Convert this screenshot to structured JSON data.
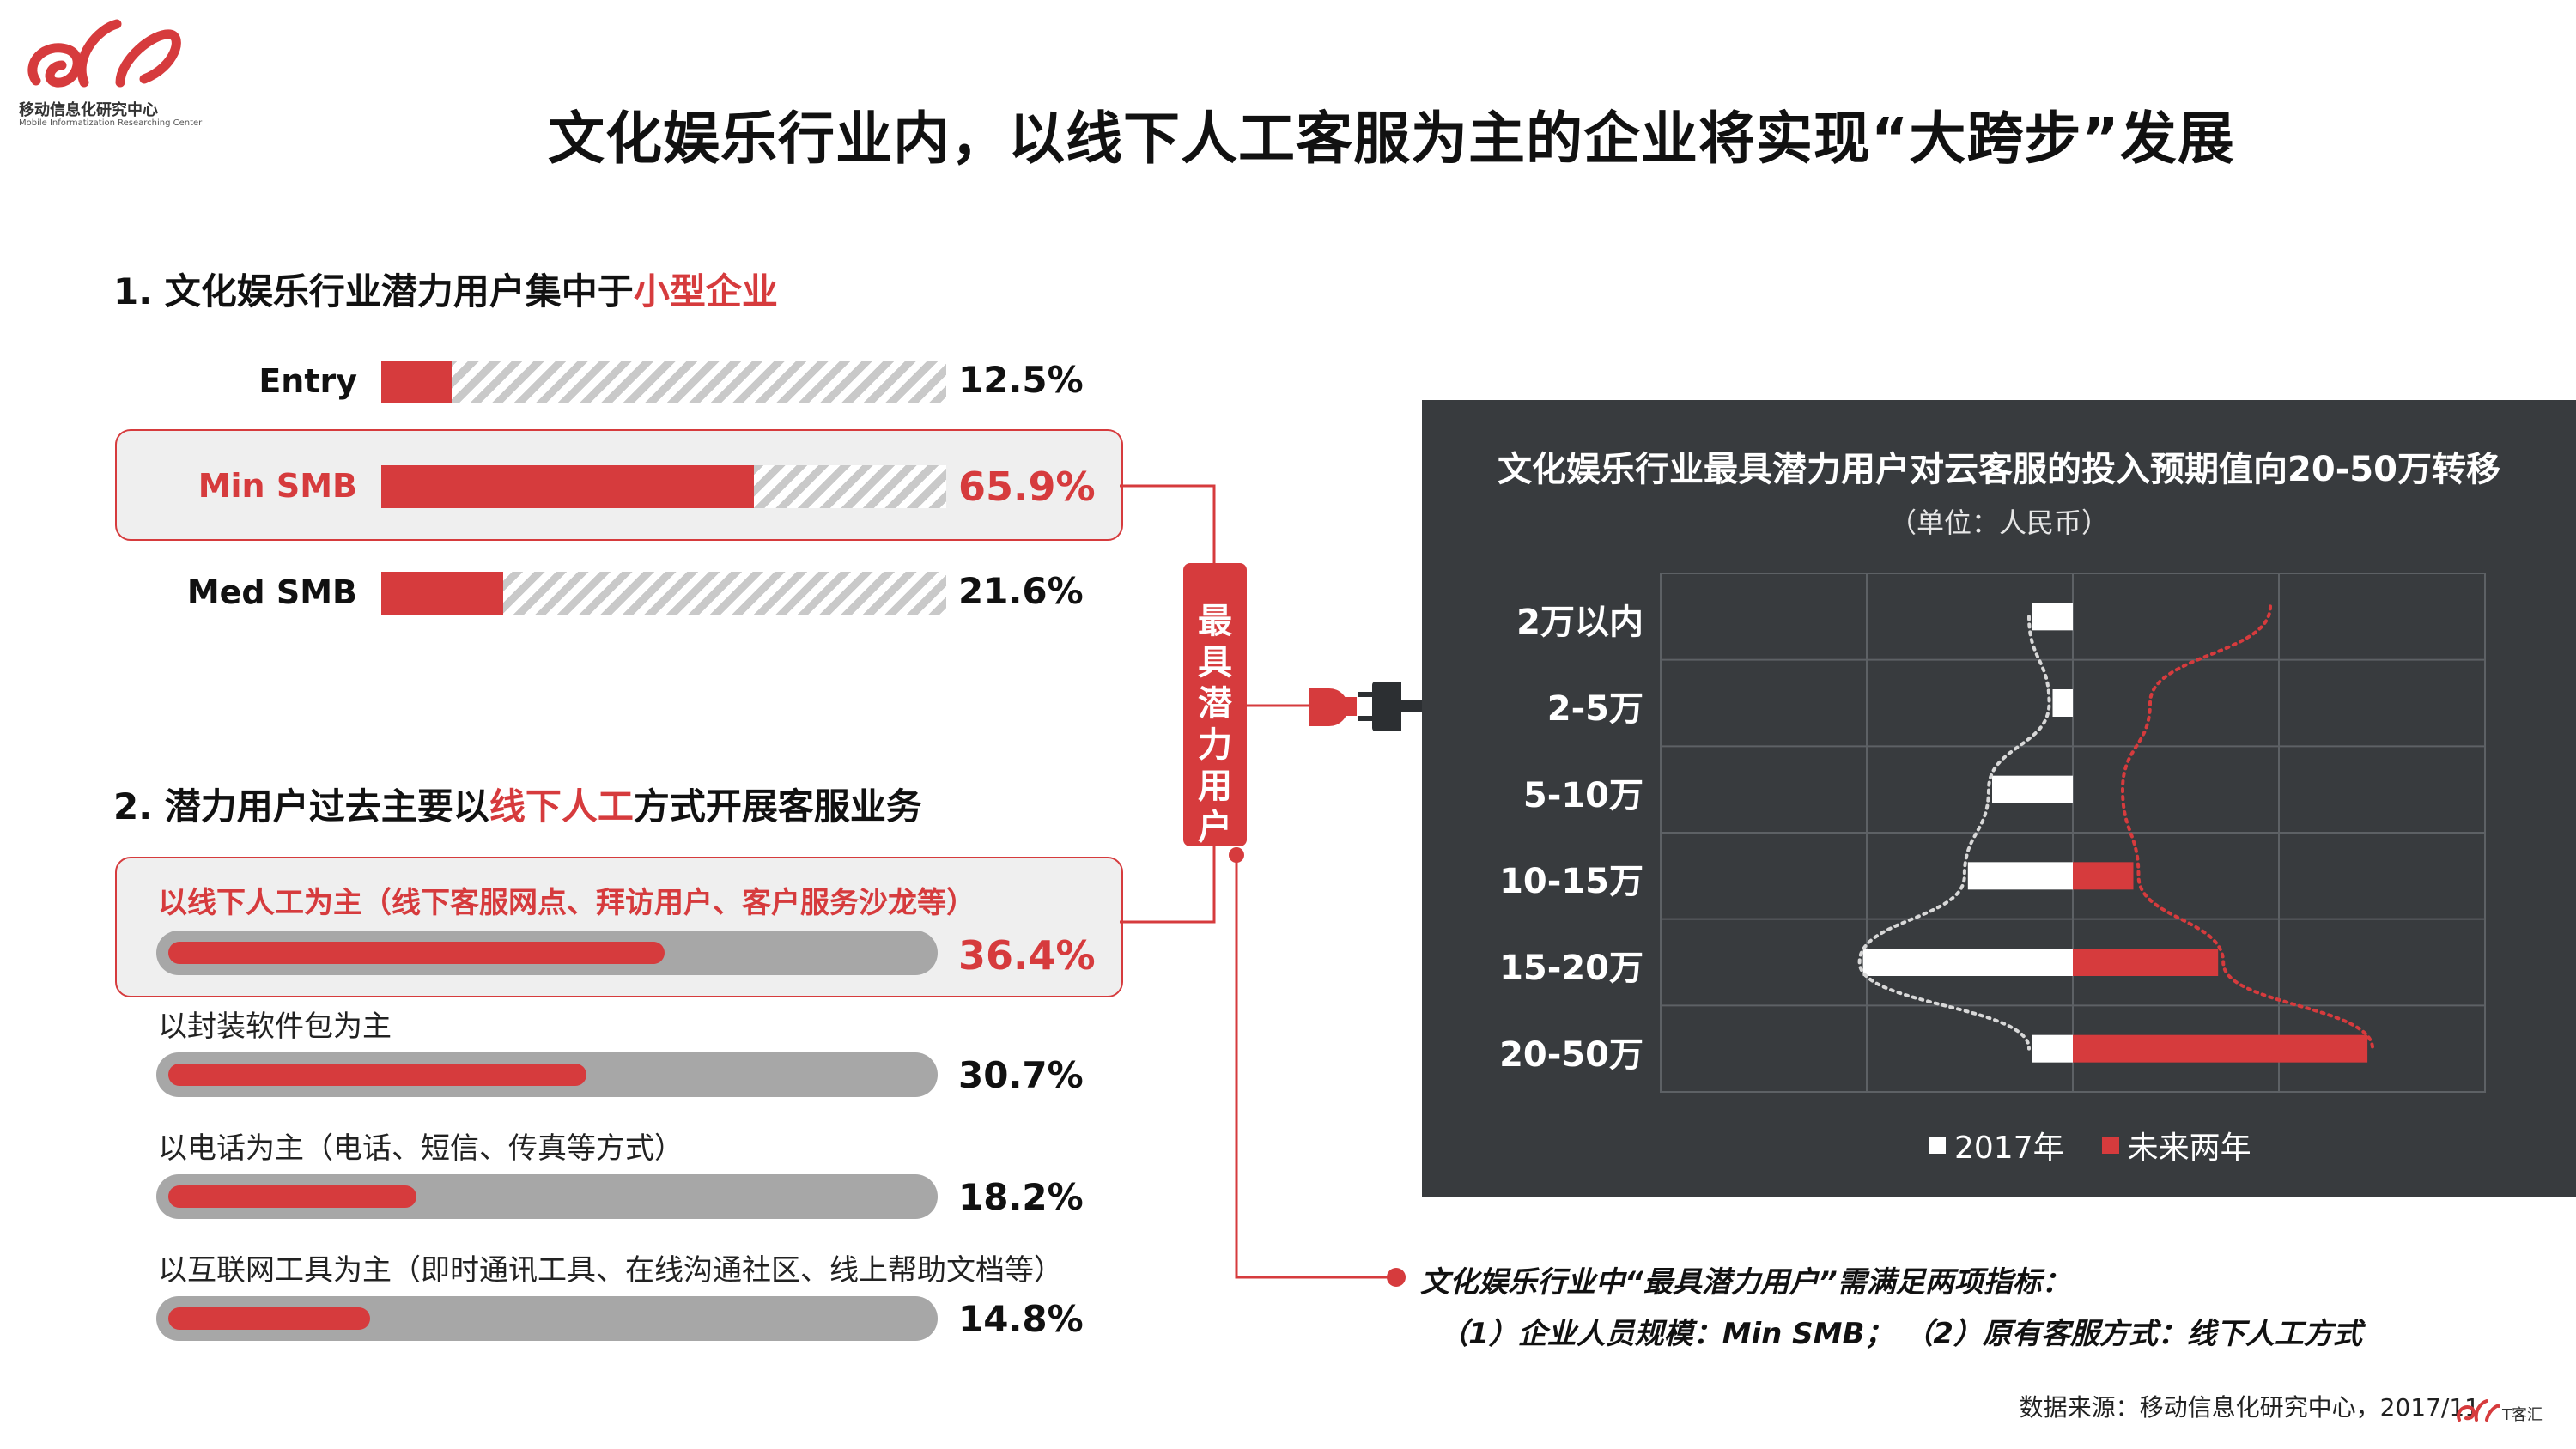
{
  "header": {
    "logo_text": "移动信息化研究中心",
    "logo_subtext": "Mobile Informatization Researching Center",
    "title": "文化娱乐行业内，以线下人工客服为主的企业将实现“大跨步”发展"
  },
  "section1": {
    "title_prefix": "1. 文化娱乐行业潜力用户集中于",
    "title_highlight": "小型企业",
    "items": [
      {
        "label": "Entry",
        "value": 12.5,
        "display": "12.5%",
        "highlighted": false
      },
      {
        "label": "Min SMB",
        "value": 65.9,
        "display": "65.9%",
        "highlighted": true
      },
      {
        "label": "Med SMB",
        "value": 21.6,
        "display": "21.6%",
        "highlighted": false
      }
    ]
  },
  "section2": {
    "title_prefix": "2. 潜力用户过去主要以",
    "title_highlight": "线下人工",
    "title_suffix": "方式开展客服业务",
    "items": [
      {
        "label": "以线下人工为主（线下客服网点、拜访用户、客户服务沙龙等）",
        "value": 36.4,
        "display": "36.4%",
        "highlighted": true
      },
      {
        "label": "以封装软件包为主",
        "value": 30.7,
        "display": "30.7%",
        "highlighted": false
      },
      {
        "label": "以电话为主（电话、短信、传真等方式）",
        "value": 18.2,
        "display": "18.2%",
        "highlighted": false
      },
      {
        "label": "以互联网工具为主（即时通讯工具、在线沟通社区、线上帮助文档等）",
        "value": 14.8,
        "display": "14.8%",
        "highlighted": false
      }
    ]
  },
  "badge": {
    "text": "最具潜力用户"
  },
  "chart_data": {
    "type": "bar",
    "orientation": "horizontal-diverging",
    "title": "文化娱乐行业最具潜力用户对云客服的投入预期值向20-50万转移",
    "subtitle": "（单位：人民币）",
    "categories": [
      "2万以内",
      "2-5万",
      "5-10万",
      "10-15万",
      "15-20万",
      "20-50万"
    ],
    "series": [
      {
        "name": "2017年",
        "values": [
          10,
          5,
          20,
          26,
          52,
          10
        ],
        "color": "#ffffff"
      },
      {
        "name": "未来两年",
        "values": [
          0,
          0,
          0,
          15,
          36,
          73
        ],
        "color": "#d63b3d"
      }
    ],
    "grid": true,
    "legend": "bottom"
  },
  "notes": {
    "line1": "文化娱乐行业中“最具潜力用户”需满足两项指标：",
    "line2": "（1）企业人员规模：Min SMB；  （2）原有客服方式：线下人工方式"
  },
  "source": "数据来源：移动信息化研究中心，2017/11",
  "brand_small": "T客汇",
  "colors": {
    "accent": "#d63b3d",
    "panel": "#383b3e",
    "track": "#a7a7a7"
  }
}
